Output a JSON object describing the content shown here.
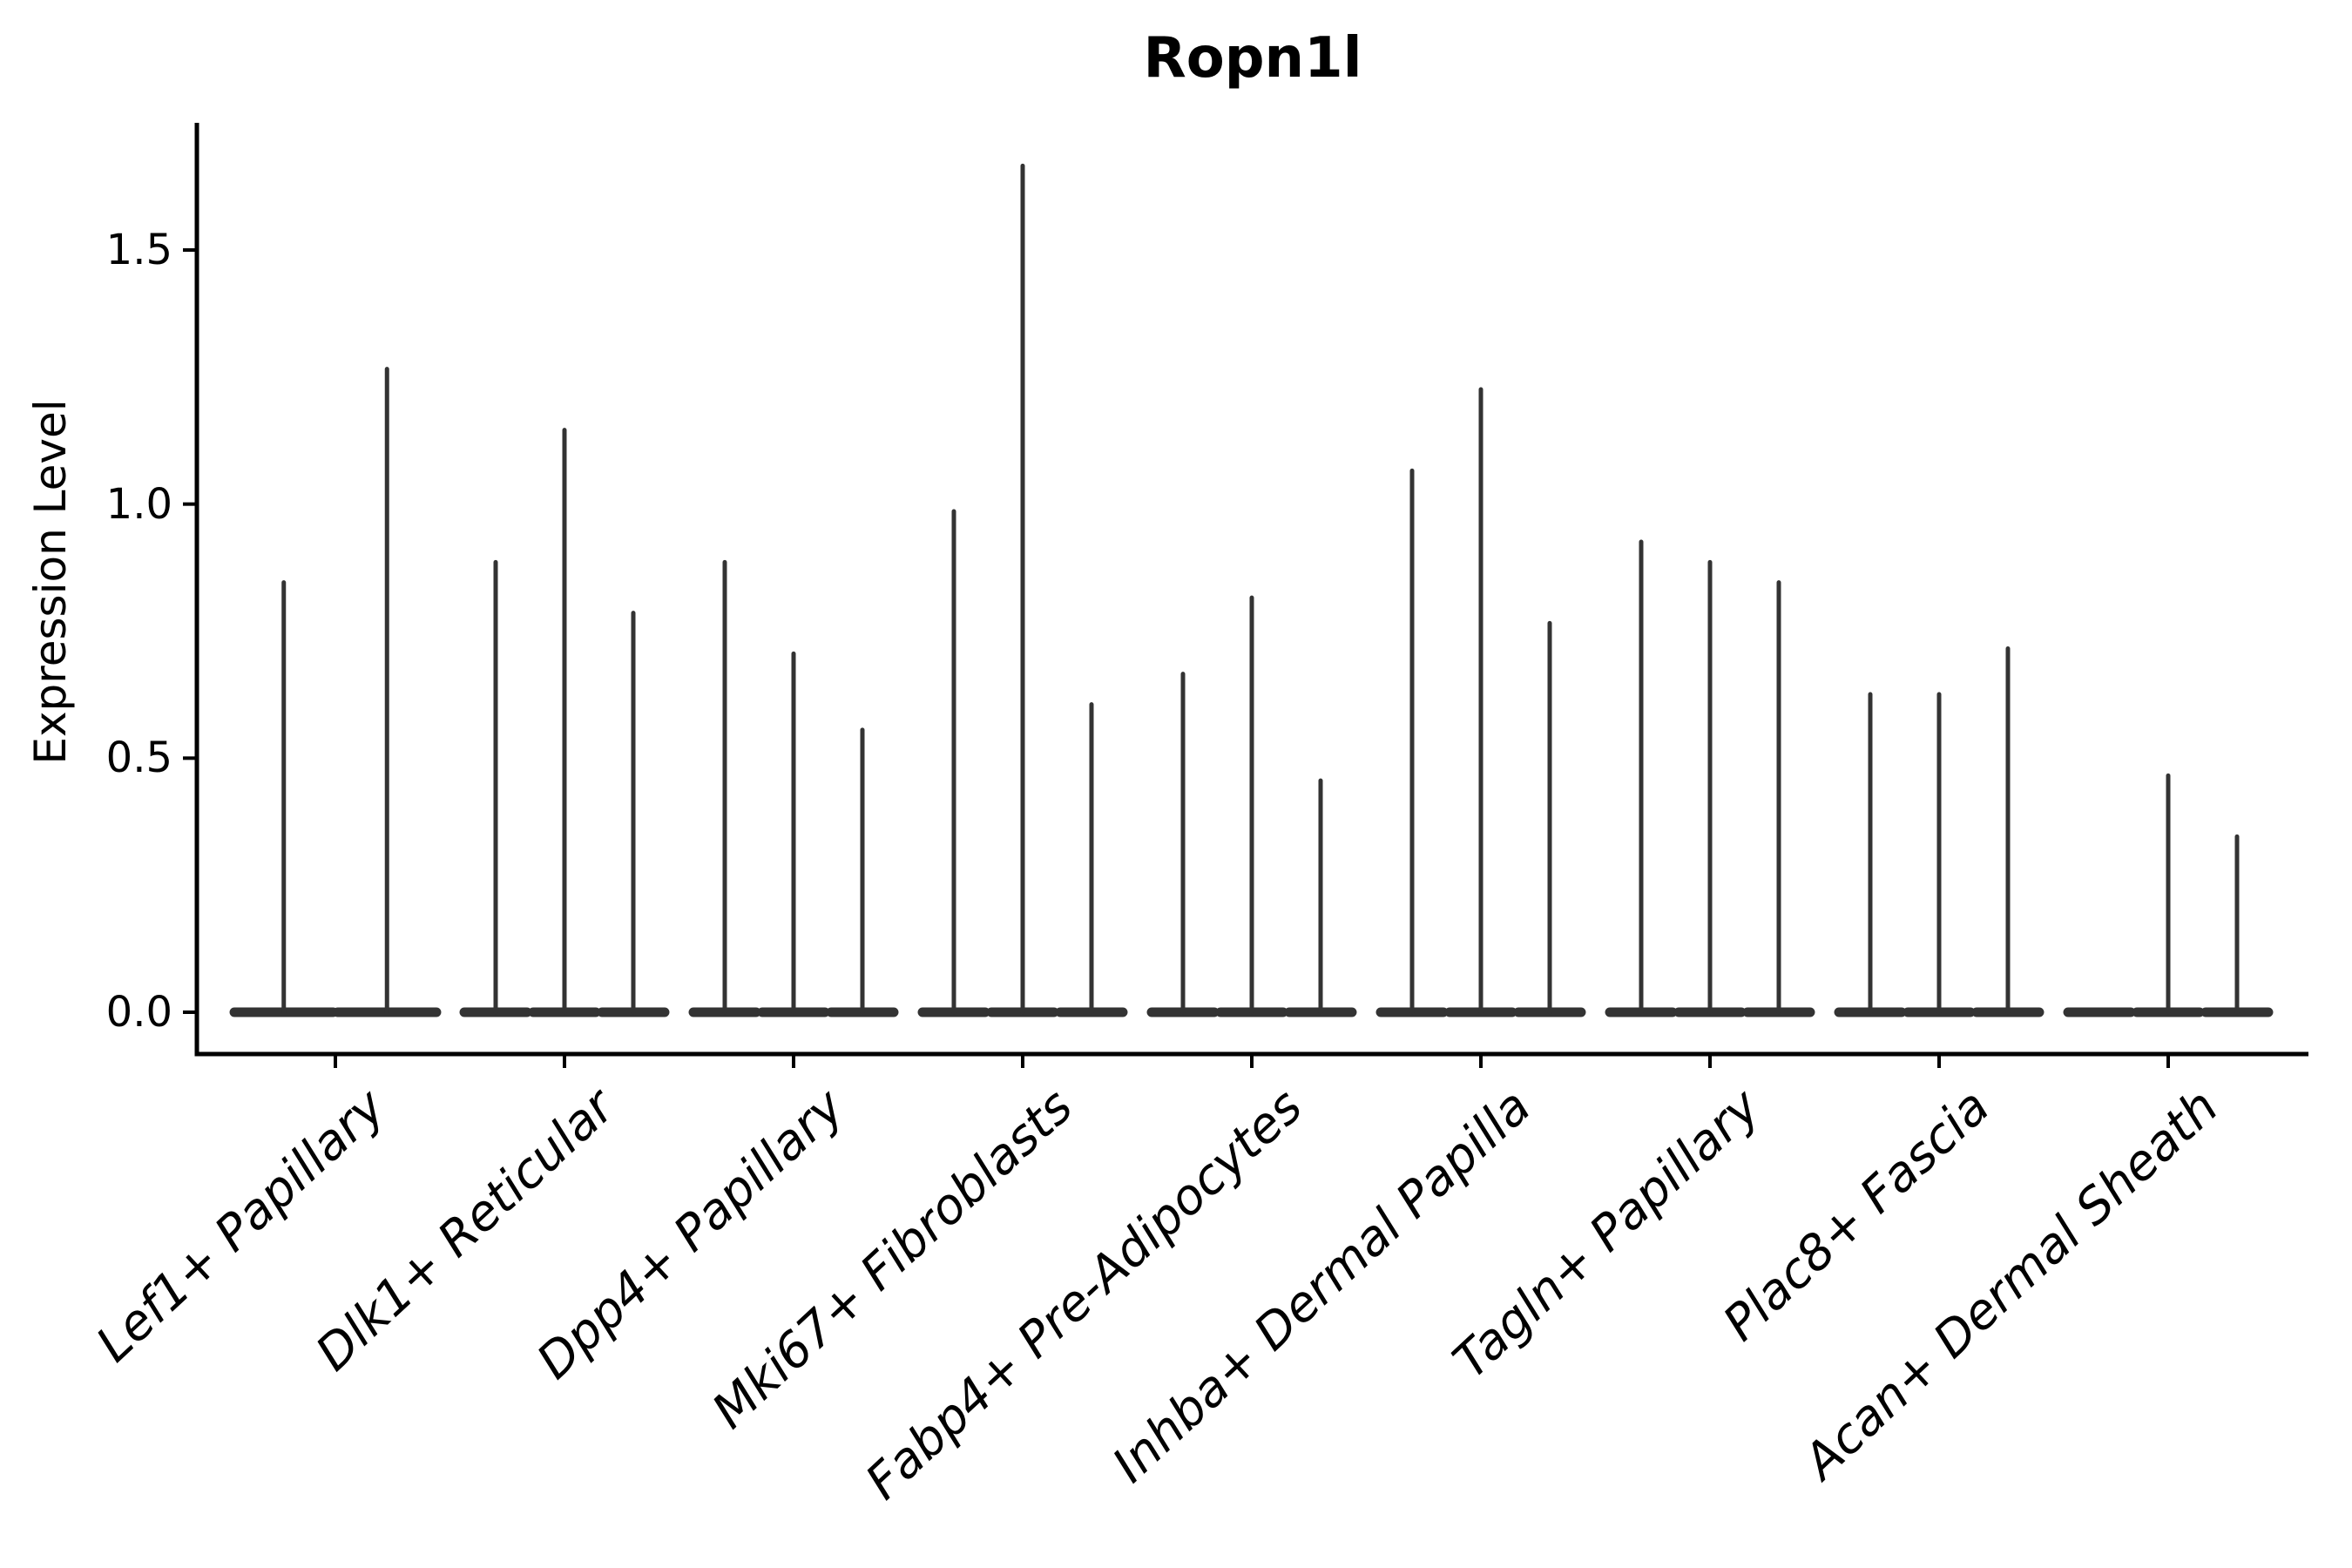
{
  "chart_data": {
    "type": "violin",
    "title": "Ropn1l",
    "ylabel": "Expression Level",
    "yticks": [
      "0.0",
      "0.5",
      "1.0",
      "1.5"
    ],
    "ytick_values": [
      0.0,
      0.5,
      1.0,
      1.5
    ],
    "ylim": [
      -0.08,
      1.75
    ],
    "legend": "none",
    "grid": false,
    "categories": [
      "Lef1+ Papillary",
      "Dlk1+ Reticular",
      "Dpp4+ Papillary",
      "Mki67+ Fibroblasts",
      "Fabp4+ Pre-Adipocytes",
      "Inhba+ Dermal Papilla",
      "Tagln+ Papillary",
      "Plac8+ Fascia",
      "Acan+ Dermal Sheath"
    ],
    "series": [
      {
        "category": "Lef1+ Papillary",
        "violin_max_values": [
          0.85,
          1.27
        ]
      },
      {
        "category": "Dlk1+ Reticular",
        "violin_max_values": [
          0.89,
          1.15,
          0.79
        ]
      },
      {
        "category": "Dpp4+ Papillary",
        "violin_max_values": [
          0.89,
          0.71,
          0.56
        ]
      },
      {
        "category": "Mki67+ Fibroblasts",
        "violin_max_values": [
          0.99,
          1.67,
          0.61
        ]
      },
      {
        "category": "Fabp4+ Pre-Adipocytes",
        "violin_max_values": [
          0.67,
          0.82,
          0.46
        ]
      },
      {
        "category": "Inhba+ Dermal Papilla",
        "violin_max_values": [
          1.07,
          1.23,
          0.77
        ]
      },
      {
        "category": "Tagln+ Papillary",
        "violin_max_values": [
          0.93,
          0.89,
          0.85
        ]
      },
      {
        "category": "Plac8+ Fascia",
        "violin_max_values": [
          0.63,
          0.63,
          0.72
        ]
      },
      {
        "category": "Acan+ Dermal Sheath",
        "violin_max_values": [
          0.0,
          0.47,
          0.35
        ]
      }
    ],
    "description": "Violin plot of gene expression; each category shows thin violins (flat base at 0 with a narrow spike up to the max expression value)."
  },
  "colors": {
    "violin": "#333333",
    "axis": "#000000",
    "text": "#000000",
    "background": "#ffffff"
  }
}
